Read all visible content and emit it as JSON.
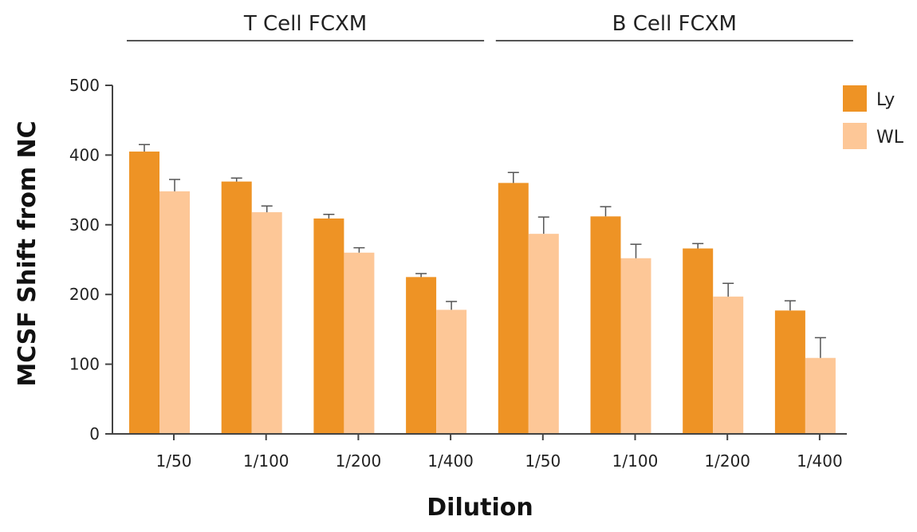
{
  "chart_data": {
    "type": "bar",
    "xlabel": "Dilution",
    "ylabel": "MCSF Shift from NC",
    "ylim": [
      0,
      500
    ],
    "yticks": [
      0,
      100,
      200,
      300,
      400,
      500
    ],
    "grid": false,
    "legend_position": "top-right",
    "groups": [
      {
        "label": "T Cell FCXM",
        "categories": [
          "1/50",
          "1/100",
          "1/200",
          "1/400"
        ]
      },
      {
        "label": "B Cell FCXM",
        "categories": [
          "1/50",
          "1/100",
          "1/200",
          "1/400"
        ]
      }
    ],
    "categories": [
      "1/50",
      "1/100",
      "1/200",
      "1/400",
      "1/50",
      "1/100",
      "1/200",
      "1/400"
    ],
    "series": [
      {
        "name": "Ly",
        "color": "#ee9325",
        "values": [
          405,
          362,
          309,
          225,
          360,
          312,
          266,
          177
        ],
        "errors": [
          10,
          5,
          6,
          5,
          15,
          14,
          7,
          14
        ]
      },
      {
        "name": "WL",
        "color": "#fdc797",
        "values": [
          348,
          318,
          260,
          178,
          287,
          252,
          197,
          109
        ],
        "errors": [
          17,
          9,
          7,
          12,
          24,
          20,
          19,
          29
        ]
      }
    ]
  }
}
